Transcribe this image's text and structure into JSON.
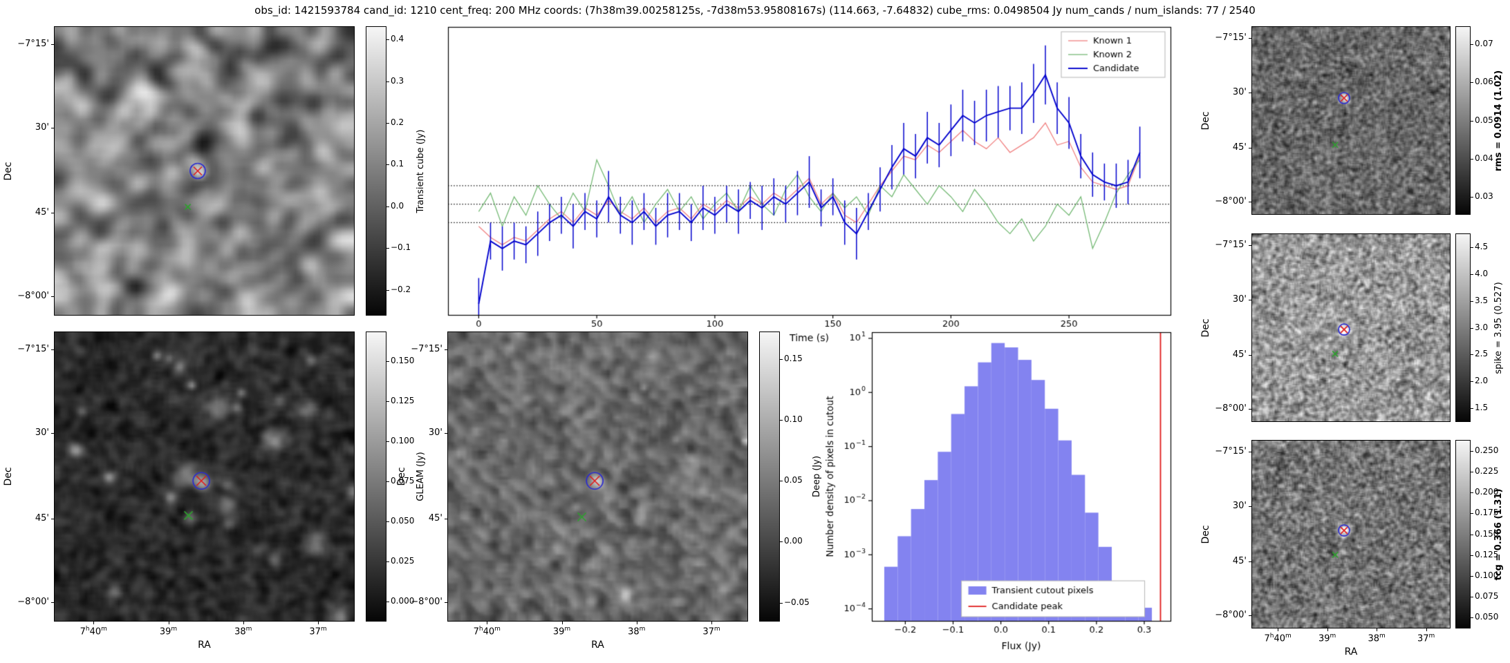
{
  "title": "obs_id: 1421593784 cand_id: 1210 cent_freq: 200 MHz coords: (7h38m39.00258125s, -7d38m53.95808167s) (114.663, -7.64832) cube_rms: 0.0498504 Jy num_cands / num_islands: 77 / 2540",
  "colors": {
    "known1": "#f08080",
    "known2": "#74b974",
    "candidate": "#0000cd",
    "hist_fill": "#8383f0",
    "peak_line": "#e01b1b",
    "marker_red": "#e01b1b",
    "marker_green": "#2ea02e",
    "marker_blue": "#2a2ad0",
    "axis": "#000000",
    "background": "#ffffff"
  },
  "axes": {
    "dec_label": "Dec",
    "ra_label": "RA",
    "dec_ticks": [
      {
        "f": 0.06,
        "label": "−7°15'"
      },
      {
        "f": 0.35,
        "label": "30'"
      },
      {
        "f": 0.645,
        "label": "45'"
      },
      {
        "f": 0.935,
        "label": "−8°00'"
      }
    ],
    "ra_ticks": [
      {
        "f": 0.13,
        "label": "7h40m"
      },
      {
        "f": 0.38,
        "label": "39m"
      },
      {
        "f": 0.63,
        "label": "38m"
      },
      {
        "f": 0.88,
        "label": "37m"
      }
    ]
  },
  "image_panels": [
    {
      "id": "transient-cube",
      "show_ra": false,
      "colorbar": {
        "label": "Transient cube (Jy)",
        "bold": false,
        "vmin": -0.26,
        "vmax": 0.43,
        "ticks": [
          {
            "v": 0.4,
            "label": "0.4"
          },
          {
            "v": 0.3,
            "label": "0.3"
          },
          {
            "v": 0.2,
            "label": "0.2"
          },
          {
            "v": 0.1,
            "label": "0.1"
          },
          {
            "v": 0.0,
            "label": "0.0"
          },
          {
            "v": -0.1,
            "label": "−0.1"
          },
          {
            "v": -0.2,
            "label": "−0.2"
          }
        ]
      },
      "noise": {
        "seed": 11,
        "g": 64,
        "blur": 3,
        "lo": 0.1,
        "hi": 0.9,
        "blobs": [
          {
            "fx": 0.478,
            "fy": 0.5,
            "s": 1.6,
            "a": 0.55
          }
        ]
      },
      "markers": [
        {
          "t": "circle",
          "c": "#2a2ad0",
          "fx": 0.478,
          "fy": 0.5,
          "r": 11
        },
        {
          "t": "x",
          "c": "#e01b1b",
          "fx": 0.478,
          "fy": 0.5,
          "r": 6
        },
        {
          "t": "x",
          "c": "#2ea02e",
          "fx": 0.445,
          "fy": 0.625,
          "r": 4
        }
      ]
    },
    {
      "id": "gleam",
      "show_ra": true,
      "colorbar": {
        "label": "GLEAM (Jy)",
        "bold": false,
        "vmin": -0.012,
        "vmax": 0.168,
        "ticks": [
          {
            "v": 0.15,
            "label": "0.150"
          },
          {
            "v": 0.125,
            "label": "0.125"
          },
          {
            "v": 0.1,
            "label": "0.100"
          },
          {
            "v": 0.075,
            "label": "0.075"
          },
          {
            "v": 0.05,
            "label": "0.050"
          },
          {
            "v": 0.025,
            "label": "0.025"
          },
          {
            "v": 0.0,
            "label": "0.000"
          }
        ]
      },
      "noise": {
        "seed": 21,
        "g": 110,
        "blur": 2,
        "lo": 0.02,
        "hi": 0.32,
        "autoBlobs": 26,
        "abAmp": [
          0.35,
          1.3
        ],
        "abSig": [
          1.1,
          3.1
        ],
        "blobs": [
          {
            "fx": 0.49,
            "fy": 0.515,
            "s": 2.2,
            "a": 1.5
          },
          {
            "fx": 0.447,
            "fy": 0.635,
            "s": 1.6,
            "a": 0.7
          }
        ]
      },
      "markers": [
        {
          "t": "circle",
          "c": "#2a2ad0",
          "fx": 0.49,
          "fy": 0.515,
          "r": 12
        },
        {
          "t": "x",
          "c": "#e01b1b",
          "fx": 0.49,
          "fy": 0.515,
          "r": 7
        },
        {
          "t": "x",
          "c": "#2ea02e",
          "fx": 0.447,
          "fy": 0.635,
          "r": 6
        }
      ]
    },
    {
      "id": "deep",
      "show_ra": true,
      "colorbar": {
        "label": "Deep (Jy)",
        "bold": false,
        "vmin": -0.065,
        "vmax": 0.172,
        "ticks": [
          {
            "v": 0.15,
            "label": "0.15"
          },
          {
            "v": 0.1,
            "label": "0.10"
          },
          {
            "v": 0.05,
            "label": "0.05"
          },
          {
            "v": 0.0,
            "label": "0.00"
          },
          {
            "v": -0.05,
            "label": "−0.05"
          }
        ]
      },
      "noise": {
        "seed": 31,
        "g": 100,
        "blur": 2,
        "lo": 0.22,
        "hi": 0.62,
        "diag": 0.06,
        "autoBlobs": 6,
        "abAmp": [
          0.4,
          0.9
        ],
        "abSig": [
          0.8,
          2.0
        ],
        "blobs": [
          {
            "fx": 0.49,
            "fy": 0.515,
            "s": 1.8,
            "a": 1.2
          },
          {
            "fx": 0.447,
            "fy": 0.64,
            "s": 1.2,
            "a": 0.4
          }
        ]
      },
      "markers": [
        {
          "t": "circle",
          "c": "#2a2ad0",
          "fx": 0.49,
          "fy": 0.515,
          "r": 12
        },
        {
          "t": "x",
          "c": "#e01b1b",
          "fx": 0.49,
          "fy": 0.515,
          "r": 7
        },
        {
          "t": "x",
          "c": "#2ea02e",
          "fx": 0.447,
          "fy": 0.64,
          "r": 6
        }
      ]
    },
    {
      "id": "rms",
      "show_ra": false,
      "colorbar": {
        "label": "rms = 0.0914 (1.02)",
        "bold": true,
        "vmin": 0.0255,
        "vmax": 0.0745,
        "ticks": [
          {
            "v": 0.07,
            "label": "0.07"
          },
          {
            "v": 0.06,
            "label": "0.06"
          },
          {
            "v": 0.05,
            "label": "0.05"
          },
          {
            "v": 0.04,
            "label": "0.04"
          },
          {
            "v": 0.03,
            "label": "0.03"
          }
        ]
      },
      "noise": {
        "seed": 41,
        "g": 150,
        "blur": 1,
        "lo": 0.08,
        "hi": 0.72,
        "blobs": [
          {
            "fx": 0.465,
            "fy": 0.38,
            "s": 2.0,
            "a": 0.8
          }
        ]
      },
      "markers": [
        {
          "t": "circle",
          "c": "#2a2ad0",
          "fx": 0.465,
          "fy": 0.38,
          "r": 8
        },
        {
          "t": "x",
          "c": "#e01b1b",
          "fx": 0.465,
          "fy": 0.38,
          "r": 5
        },
        {
          "t": "x",
          "c": "#2ea02e",
          "fx": 0.42,
          "fy": 0.63,
          "r": 4
        }
      ]
    },
    {
      "id": "spike",
      "show_ra": false,
      "colorbar": {
        "label": "spike = 3.95 (0.527)",
        "bold": false,
        "vmin": 1.25,
        "vmax": 4.75,
        "ticks": [
          {
            "v": 4.5,
            "label": "4.5"
          },
          {
            "v": 4.0,
            "label": "4.0"
          },
          {
            "v": 3.5,
            "label": "3.5"
          },
          {
            "v": 3.0,
            "label": "3.0"
          },
          {
            "v": 2.5,
            "label": "2.5"
          },
          {
            "v": 2.0,
            "label": "2.0"
          },
          {
            "v": 1.5,
            "label": "1.5"
          }
        ]
      },
      "noise": {
        "seed": 51,
        "g": 150,
        "blur": 1,
        "lo": 0.15,
        "hi": 0.98,
        "blobs": [
          {
            "fx": 0.465,
            "fy": 0.51,
            "s": 2.0,
            "a": 0.8
          }
        ]
      },
      "markers": [
        {
          "t": "circle",
          "c": "#2a2ad0",
          "fx": 0.465,
          "fy": 0.51,
          "r": 8
        },
        {
          "t": "x",
          "c": "#e01b1b",
          "fx": 0.465,
          "fy": 0.51,
          "r": 5
        },
        {
          "t": "x",
          "c": "#2ea02e",
          "fx": 0.42,
          "fy": 0.64,
          "r": 4
        }
      ]
    },
    {
      "id": "tcg",
      "show_ra": true,
      "colorbar": {
        "label": "tcg = 0.366 (1.31)",
        "bold": true,
        "vmin": 0.038,
        "vmax": 0.262,
        "ticks": [
          {
            "v": 0.25,
            "label": "0.250"
          },
          {
            "v": 0.225,
            "label": "0.225"
          },
          {
            "v": 0.2,
            "label": "0.200"
          },
          {
            "v": 0.175,
            "label": "0.175"
          },
          {
            "v": 0.15,
            "label": "0.150"
          },
          {
            "v": 0.125,
            "label": "0.125"
          },
          {
            "v": 0.1,
            "label": "0.100"
          },
          {
            "v": 0.075,
            "label": "0.075"
          },
          {
            "v": 0.05,
            "label": "0.050"
          }
        ]
      },
      "noise": {
        "seed": 61,
        "g": 150,
        "blur": 1,
        "lo": 0.08,
        "hi": 0.8,
        "blobs": [
          {
            "fx": 0.465,
            "fy": 0.48,
            "s": 2.2,
            "a": 0.9
          }
        ]
      },
      "markers": [
        {
          "t": "circle",
          "c": "#2a2ad0",
          "fx": 0.465,
          "fy": 0.48,
          "r": 8
        },
        {
          "t": "x",
          "c": "#e01b1b",
          "fx": 0.465,
          "fy": 0.48,
          "r": 5
        },
        {
          "t": "x",
          "c": "#2ea02e",
          "fx": 0.42,
          "fy": 0.61,
          "r": 4
        }
      ]
    }
  ],
  "chart_data": [
    {
      "type": "line",
      "name": "lightcurve",
      "title": "",
      "xlabel": "Time (s)",
      "ylabel": "",
      "xlim": [
        -13,
        293
      ],
      "ylim": [
        -0.3,
        0.48
      ],
      "hlines": [
        0.05,
        0.0,
        -0.05
      ],
      "xticks": [
        {
          "v": 0,
          "label": "0"
        },
        {
          "v": 50,
          "label": "50"
        },
        {
          "v": 100,
          "label": "100"
        },
        {
          "v": 150,
          "label": "150"
        },
        {
          "v": 200,
          "label": "200"
        },
        {
          "v": 250,
          "label": "250"
        }
      ],
      "x": [
        0,
        5,
        10,
        15,
        20,
        25,
        30,
        35,
        40,
        45,
        50,
        55,
        60,
        65,
        70,
        75,
        80,
        85,
        90,
        95,
        100,
        105,
        110,
        115,
        120,
        125,
        130,
        135,
        140,
        145,
        150,
        155,
        160,
        165,
        170,
        175,
        180,
        185,
        190,
        195,
        200,
        205,
        210,
        215,
        220,
        225,
        230,
        235,
        240,
        245,
        250,
        255,
        260,
        265,
        270,
        275,
        280
      ],
      "series": [
        {
          "name": "Known 1",
          "color": "#f08080",
          "values": [
            -0.06,
            -0.09,
            -0.11,
            -0.09,
            -0.1,
            -0.07,
            -0.04,
            -0.02,
            -0.05,
            -0.01,
            -0.03,
            0.01,
            -0.02,
            -0.04,
            -0.01,
            -0.05,
            -0.02,
            -0.01,
            -0.04,
            0.0,
            -0.02,
            0.01,
            -0.01,
            0.02,
            0.0,
            0.03,
            0.01,
            0.04,
            0.07,
            0.0,
            0.03,
            -0.03,
            -0.05,
            0.0,
            0.05,
            0.09,
            0.13,
            0.12,
            0.16,
            0.14,
            0.17,
            0.2,
            0.17,
            0.15,
            0.18,
            0.14,
            0.16,
            0.18,
            0.22,
            0.16,
            0.17,
            0.1,
            0.06,
            0.05,
            0.04,
            0.05,
            0.13
          ]
        },
        {
          "name": "Known 2",
          "color": "#74b974",
          "values": [
            -0.02,
            0.03,
            -0.06,
            0.02,
            -0.03,
            0.05,
            0.0,
            -0.04,
            0.03,
            -0.02,
            0.12,
            0.05,
            -0.03,
            0.02,
            -0.05,
            0.0,
            0.04,
            -0.02,
            0.02,
            -0.04,
            0.0,
            0.03,
            -0.02,
            0.05,
            0.0,
            -0.03,
            0.04,
            0.08,
            0.02,
            -0.02,
            0.03,
            -0.01,
            0.02,
            -0.03,
            0.05,
            0.02,
            0.08,
            0.04,
            0.0,
            0.05,
            0.02,
            -0.02,
            0.04,
            0.0,
            -0.05,
            -0.08,
            -0.04,
            -0.1,
            -0.06,
            0.0,
            -0.03,
            0.02,
            -0.12,
            -0.05,
            0.03,
            0.08,
            0.12
          ]
        },
        {
          "name": "Candidate",
          "color": "#0000cd",
          "values": [
            -0.27,
            -0.1,
            -0.12,
            -0.1,
            -0.11,
            -0.08,
            -0.05,
            -0.03,
            -0.06,
            -0.02,
            -0.04,
            0.02,
            -0.03,
            -0.05,
            -0.02,
            -0.06,
            -0.03,
            -0.02,
            -0.05,
            -0.01,
            -0.03,
            0.0,
            -0.02,
            0.01,
            -0.01,
            0.02,
            0.0,
            0.03,
            0.06,
            -0.01,
            0.02,
            -0.05,
            -0.08,
            -0.02,
            0.04,
            0.1,
            0.15,
            0.13,
            0.18,
            0.16,
            0.2,
            0.24,
            0.22,
            0.24,
            0.25,
            0.26,
            0.26,
            0.3,
            0.35,
            0.26,
            0.22,
            0.13,
            0.08,
            0.06,
            0.05,
            0.06,
            0.14
          ],
          "errors": [
            0.07,
            0.05,
            0.06,
            0.05,
            0.05,
            0.06,
            0.05,
            0.05,
            0.06,
            0.05,
            0.05,
            0.07,
            0.05,
            0.06,
            0.05,
            0.05,
            0.06,
            0.05,
            0.05,
            0.06,
            0.05,
            0.05,
            0.06,
            0.05,
            0.06,
            0.05,
            0.05,
            0.06,
            0.07,
            0.05,
            0.05,
            0.06,
            0.07,
            0.05,
            0.06,
            0.06,
            0.07,
            0.06,
            0.07,
            0.06,
            0.07,
            0.07,
            0.06,
            0.07,
            0.07,
            0.06,
            0.07,
            0.08,
            0.08,
            0.07,
            0.07,
            0.06,
            0.06,
            0.05,
            0.06,
            0.06,
            0.07
          ]
        }
      ],
      "legend": [
        "Known 1",
        "Known 2",
        "Candidate"
      ],
      "legend_position": "upper right"
    },
    {
      "type": "bar",
      "name": "flux-histogram",
      "xlabel": "Flux (Jy)",
      "ylabel": "Number density of pixels in cutout",
      "yscale": "log",
      "xlim": [
        -0.27,
        0.355
      ],
      "ylim": [
        6e-05,
        13
      ],
      "bin_width": 0.028,
      "bins": [
        -0.244,
        -0.216,
        -0.188,
        -0.16,
        -0.132,
        -0.104,
        -0.076,
        -0.048,
        -0.02,
        0.008,
        0.036,
        0.064,
        0.092,
        0.12,
        0.148,
        0.176,
        0.204,
        0.232,
        0.26,
        0.288
      ],
      "values": [
        0.0006,
        0.0022,
        0.007,
        0.024,
        0.08,
        0.4,
        1.3,
        3.6,
        8.2,
        6.8,
        4.0,
        1.7,
        0.5,
        0.13,
        0.03,
        0.006,
        0.0014,
        0.0003,
        0.00012,
        0.000105
      ],
      "fill_color": "#8383f0",
      "vline": {
        "x": 0.334,
        "color": "#e01b1b",
        "label": "Candidate peak"
      },
      "xticks": [
        {
          "v": -0.2,
          "label": "−0.2"
        },
        {
          "v": -0.1,
          "label": "−0.1"
        },
        {
          "v": 0.0,
          "label": "0.0"
        },
        {
          "v": 0.1,
          "label": "0.1"
        },
        {
          "v": 0.2,
          "label": "0.2"
        },
        {
          "v": 0.3,
          "label": "0.3"
        }
      ],
      "yticks": [
        {
          "e": 1,
          "sup": "1"
        },
        {
          "e": 0,
          "sup": "0"
        },
        {
          "e": -1,
          "sup": "−1"
        },
        {
          "e": -2,
          "sup": "−2"
        },
        {
          "e": -3,
          "sup": "−3"
        },
        {
          "e": -4,
          "sup": "−4"
        }
      ],
      "legend": [
        "Transient cutout pixels",
        "Candidate peak"
      ],
      "legend_position": "lower center"
    }
  ]
}
